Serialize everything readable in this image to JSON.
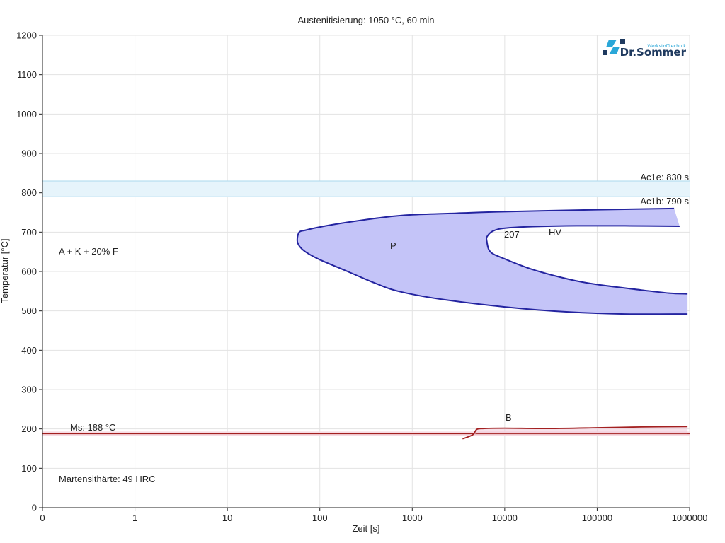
{
  "chart_data": {
    "type": "line",
    "title": "Austenitisierung: 1050 °C, 60 min",
    "xlabel": "Zeit [s]",
    "ylabel": "Temperatur [°C]",
    "xscale": "log",
    "xlim": [
      0,
      1000000
    ],
    "ylim": [
      0,
      1200
    ],
    "grid": true,
    "x_ticks": [
      "0",
      "1",
      "10",
      "100",
      "1000",
      "10000",
      "100000",
      "1000000"
    ],
    "y_ticks": [
      0,
      100,
      200,
      300,
      400,
      500,
      600,
      700,
      800,
      900,
      1000,
      1100,
      1200
    ],
    "bands": [
      {
        "name": "Ac1e",
        "label": "Ac1e: 830 s",
        "y": 830,
        "color": "#a9d8ee"
      },
      {
        "name": "Ac1b",
        "label": "Ac1b: 790 s",
        "y": 790,
        "color": "#a9d8ee"
      }
    ],
    "ms": {
      "label": "Ms: 188 °C",
      "y": 188,
      "color": "#a32020"
    },
    "regions": [
      {
        "name": "P",
        "label": "P",
        "fill": "#c4c4f8",
        "stroke": "#2424a0",
        "outer": [
          [
            680000,
            760
          ],
          [
            100000,
            757
          ],
          [
            10000,
            752
          ],
          [
            3000,
            748
          ],
          [
            1000,
            744
          ],
          [
            500,
            738
          ],
          [
            200,
            725
          ],
          [
            100,
            713
          ],
          [
            70,
            705
          ],
          [
            60,
            700
          ],
          [
            57,
            680
          ],
          [
            60,
            665
          ],
          [
            70,
            650
          ],
          [
            100,
            630
          ],
          [
            200,
            600
          ],
          [
            400,
            570
          ],
          [
            700,
            550
          ],
          [
            2000,
            530
          ],
          [
            10000,
            510
          ],
          [
            50000,
            497
          ],
          [
            200000,
            492
          ],
          [
            950000,
            492
          ]
        ],
        "inner": [
          [
            780000,
            715
          ],
          [
            200000,
            716
          ],
          [
            60000,
            716
          ],
          [
            20000,
            714
          ],
          [
            10000,
            710
          ],
          [
            7500,
            703
          ],
          [
            6500,
            690
          ],
          [
            6400,
            678
          ],
          [
            7000,
            650
          ],
          [
            10000,
            632
          ],
          [
            20000,
            605
          ],
          [
            50000,
            580
          ],
          [
            100000,
            567
          ],
          [
            300000,
            553
          ],
          [
            600000,
            545
          ],
          [
            950000,
            543
          ]
        ]
      },
      {
        "name": "B",
        "label": "B",
        "stroke": "#a32020",
        "fill": "#f0c8d8",
        "curve": [
          [
            3500,
            175
          ],
          [
            4500,
            185
          ],
          [
            5000,
            199
          ],
          [
            6000,
            201
          ],
          [
            10000,
            202
          ],
          [
            30000,
            201
          ],
          [
            100000,
            203
          ],
          [
            300000,
            205
          ],
          [
            950000,
            206
          ]
        ]
      }
    ],
    "annotations": {
      "phases": "A + K + 20% F",
      "hardness_value": "207",
      "hardness_unit": "HV",
      "martensite": "Martensithärte: 49 HRC"
    },
    "logo": {
      "name": "Dr.Sommer",
      "sub": "Werkstofftechnik"
    }
  }
}
